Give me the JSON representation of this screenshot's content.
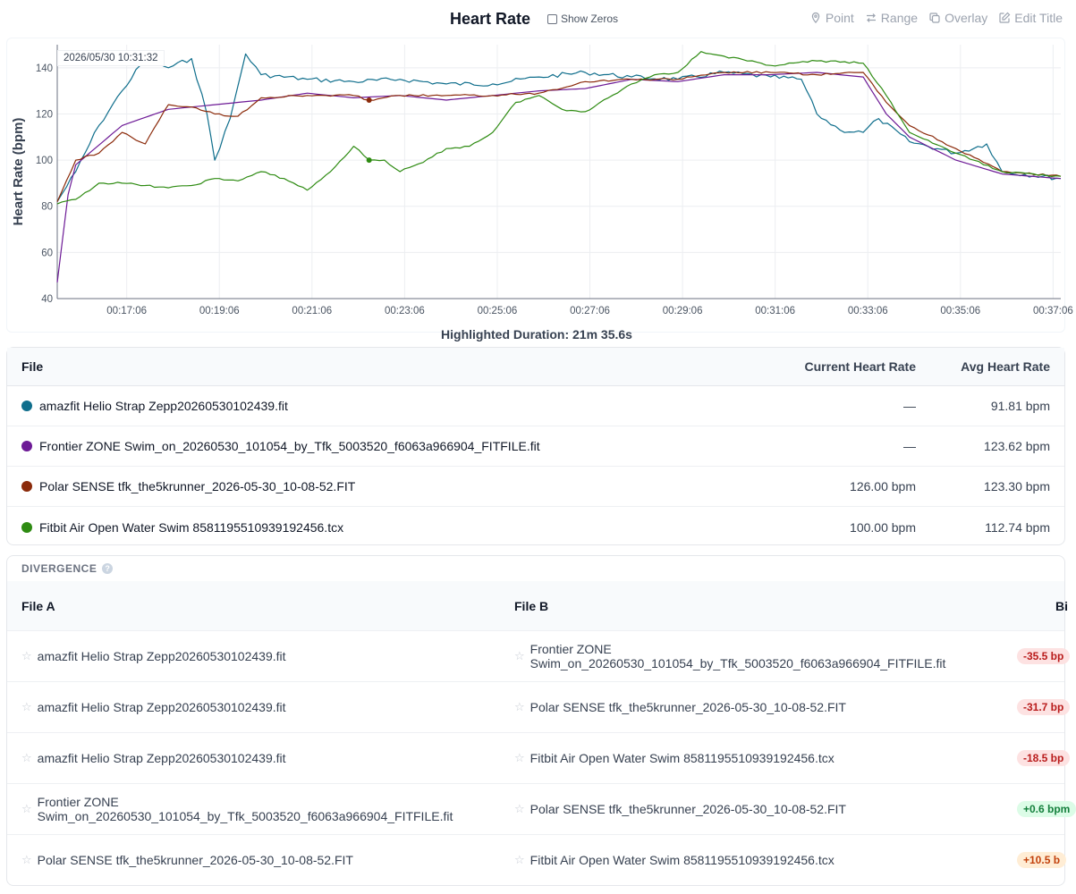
{
  "header": {
    "title": "Heart Rate",
    "show_zeros_label": "Show Zeros",
    "tools": [
      {
        "label": "Point",
        "icon": "pin-icon"
      },
      {
        "label": "Range",
        "icon": "range-arrows-icon"
      },
      {
        "label": "Overlay",
        "icon": "overlay-copy-icon"
      },
      {
        "label": "Edit Title",
        "icon": "edit-icon"
      }
    ]
  },
  "chart_data": {
    "type": "line",
    "ylabel": "Heart Rate (bpm)",
    "xlabel": "",
    "ylim": [
      40,
      150
    ],
    "yticks": [
      40,
      60,
      80,
      100,
      120,
      140
    ],
    "xlim": [
      "00:15:36",
      "00:37:16"
    ],
    "xticks": [
      "00:17:06",
      "00:19:06",
      "00:21:06",
      "00:23:06",
      "00:25:06",
      "00:27:06",
      "00:29:06",
      "00:31:06",
      "00:33:06",
      "00:35:06",
      "00:37:06"
    ],
    "grid": true,
    "cursor_time": "2026/05/30 10:31:32",
    "cursor_x": "00:22:20",
    "series": [
      {
        "name": "amazfit Helio Strap Zepp20260530102439.fit",
        "color": "#0f6e8c",
        "x": [
          "00:15:36",
          "00:16:00",
          "00:16:30",
          "00:17:00",
          "00:17:30",
          "00:18:00",
          "00:18:30",
          "00:18:50",
          "00:19:00",
          "00:19:20",
          "00:19:40",
          "00:20:00",
          "00:21:00",
          "00:22:00",
          "00:23:00",
          "00:24:00",
          "00:25:00",
          "00:26:00",
          "00:27:00",
          "00:28:00",
          "00:29:00",
          "00:30:00",
          "00:31:00",
          "00:31:40",
          "00:32:00",
          "00:32:30",
          "00:33:00",
          "00:33:20",
          "00:34:00",
          "00:35:00",
          "00:35:40",
          "00:36:00",
          "00:37:16"
        ],
        "values": [
          82,
          95,
          115,
          130,
          144,
          140,
          144,
          120,
          100,
          118,
          146,
          137,
          135,
          134,
          135,
          133,
          133,
          136,
          138,
          136,
          135,
          138,
          136,
          135,
          120,
          113,
          112,
          118,
          108,
          103,
          107,
          95,
          92
        ]
      },
      {
        "name": "Frontier ZONE Swim_on_20260530_101054_by_Tfk_5003520_f6063a966904_FITFILE.fit",
        "color": "#6d1a96",
        "x": [
          "00:15:36",
          "00:15:50",
          "00:16:00",
          "00:17:00",
          "00:18:00",
          "00:19:00",
          "00:20:00",
          "00:21:00",
          "00:22:00",
          "00:23:00",
          "00:24:00",
          "00:25:00",
          "00:26:00",
          "00:27:00",
          "00:28:00",
          "00:29:00",
          "00:30:00",
          "00:31:00",
          "00:32:00",
          "00:33:00",
          "00:33:30",
          "00:34:00",
          "00:35:00",
          "00:36:00",
          "00:37:16"
        ],
        "values": [
          47,
          85,
          98,
          115,
          122,
          124,
          126,
          129,
          127,
          128,
          126,
          128,
          130,
          131,
          135,
          134,
          137,
          137,
          138,
          136,
          120,
          110,
          100,
          94,
          92
        ]
      },
      {
        "name": "Polar SENSE tfk_the5krunner_2026-05-30_10-08-52.FIT",
        "color": "#8b2a0a",
        "x": [
          "00:15:36",
          "00:16:00",
          "00:16:30",
          "00:17:00",
          "00:17:30",
          "00:18:00",
          "00:18:30",
          "00:19:00",
          "00:19:30",
          "00:20:00",
          "00:21:00",
          "00:22:00",
          "00:22:20",
          "00:23:00",
          "00:24:00",
          "00:25:00",
          "00:26:00",
          "00:27:00",
          "00:28:00",
          "00:29:00",
          "00:30:00",
          "00:31:00",
          "00:32:00",
          "00:33:00",
          "00:33:30",
          "00:34:00",
          "00:35:00",
          "00:36:00",
          "00:37:16"
        ],
        "values": [
          82,
          100,
          103,
          112,
          107,
          124,
          123,
          120,
          119,
          127,
          128,
          128,
          126,
          128,
          128,
          128,
          129,
          134,
          135,
          135,
          138,
          138,
          137,
          138,
          125,
          115,
          105,
          95,
          93
        ]
      },
      {
        "name": "Fitbit Air Open Water Swim 8581195510939192456.tcx",
        "color": "#2e8b12",
        "x": [
          "00:15:36",
          "00:16:00",
          "00:16:30",
          "00:17:00",
          "00:17:30",
          "00:18:00",
          "00:18:30",
          "00:19:00",
          "00:19:30",
          "00:20:00",
          "00:20:30",
          "00:21:00",
          "00:21:30",
          "00:22:00",
          "00:22:20",
          "00:22:40",
          "00:23:00",
          "00:23:30",
          "00:24:00",
          "00:24:30",
          "00:25:00",
          "00:25:30",
          "00:26:00",
          "00:26:30",
          "00:27:00",
          "00:27:30",
          "00:28:00",
          "00:28:30",
          "00:29:00",
          "00:29:30",
          "00:30:00",
          "00:31:00",
          "00:32:00",
          "00:33:00",
          "00:33:30",
          "00:34:00",
          "00:35:00",
          "00:36:00",
          "00:37:16"
        ],
        "values": [
          81,
          83,
          90,
          90,
          89,
          88,
          89,
          92,
          91,
          95,
          92,
          87,
          95,
          106,
          100,
          100,
          95,
          99,
          105,
          106,
          112,
          125,
          128,
          122,
          121,
          127,
          133,
          137,
          138,
          147,
          145,
          141,
          143,
          142,
          128,
          112,
          103,
          95,
          93
        ]
      }
    ]
  },
  "highlight": {
    "label": "Highlighted Duration: 21m 35.6s"
  },
  "files_table": {
    "headers": {
      "file": "File",
      "current": "Current Heart Rate",
      "avg": "Avg Heart Rate"
    },
    "rows": [
      {
        "color": "#0f6e8c",
        "name": "amazfit Helio Strap Zepp20260530102439.fit",
        "current": "—",
        "avg": "91.81 bpm"
      },
      {
        "color": "#6d1a96",
        "name": "Frontier ZONE Swim_on_20260530_101054_by_Tfk_5003520_f6063a966904_FITFILE.fit",
        "current": "—",
        "avg": "123.62 bpm"
      },
      {
        "color": "#8b2a0a",
        "name": "Polar SENSE tfk_the5krunner_2026-05-30_10-08-52.FIT",
        "current": "126.00 bpm",
        "avg": "123.30 bpm"
      },
      {
        "color": "#2e8b12",
        "name": "Fitbit Air Open Water Swim 8581195510939192456.tcx",
        "current": "100.00 bpm",
        "avg": "112.74 bpm"
      }
    ]
  },
  "divergence": {
    "title": "DIVERGENCE",
    "help_icon": "question-icon",
    "headers": {
      "a": "File A",
      "b": "File B",
      "bias": "Bi"
    },
    "rows": [
      {
        "a": "amazfit Helio Strap Zepp20260530102439.fit",
        "b": "Frontier ZONE Swim_on_20260530_101054_by_Tfk_5003520_f6063a966904_FITFILE.fit",
        "bias": "-35.5 bp",
        "tone": "red"
      },
      {
        "a": "amazfit Helio Strap Zepp20260530102439.fit",
        "b": "Polar SENSE tfk_the5krunner_2026-05-30_10-08-52.FIT",
        "bias": "-31.7 bp",
        "tone": "red"
      },
      {
        "a": "amazfit Helio Strap Zepp20260530102439.fit",
        "b": "Fitbit Air Open Water Swim 8581195510939192456.tcx",
        "bias": "-18.5 bp",
        "tone": "red"
      },
      {
        "a": "Frontier ZONE Swim_on_20260530_101054_by_Tfk_5003520_f6063a966904_FITFILE.fit",
        "b": "Polar SENSE tfk_the5krunner_2026-05-30_10-08-52.FIT",
        "bias": "+0.6 bpm",
        "tone": "green"
      },
      {
        "a": "Polar SENSE tfk_the5krunner_2026-05-30_10-08-52.FIT",
        "b": "Fitbit Air Open Water Swim 8581195510939192456.tcx",
        "bias": "+10.5 b",
        "tone": "orange"
      }
    ]
  }
}
